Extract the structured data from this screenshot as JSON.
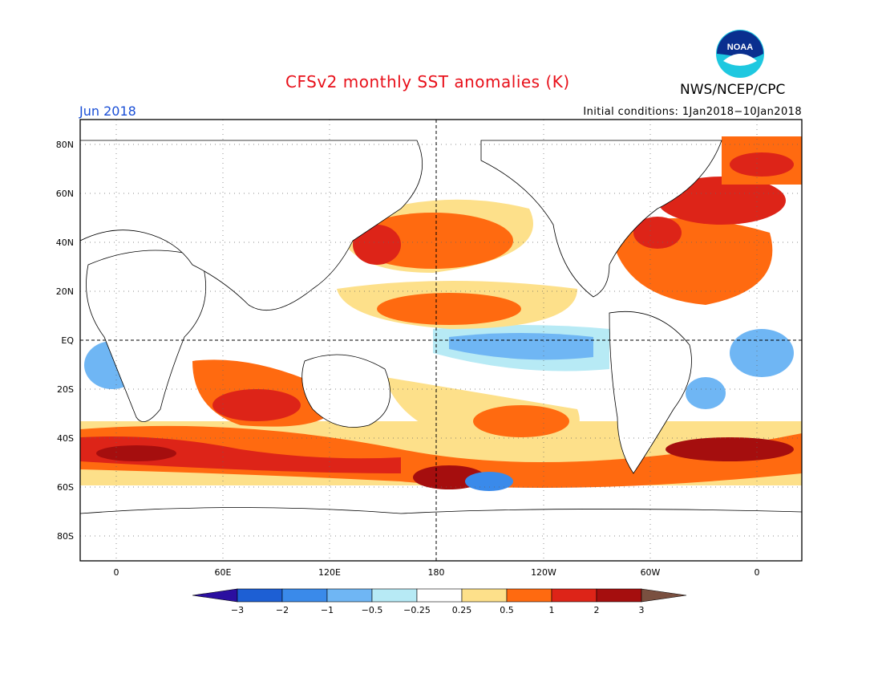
{
  "header": {
    "title": "CFSv2 monthly SST anomalies (K)",
    "month": "Jun 2018",
    "initial_conditions": "Initial conditions: 1Jan2018−10Jan2018",
    "agency": "NWS/NCEP/CPC",
    "logo_text": "NOAA"
  },
  "map": {
    "lat_labels": [
      "80N",
      "60N",
      "40N",
      "20N",
      "EQ",
      "20S",
      "40S",
      "60S",
      "80S"
    ],
    "lon_labels": [
      "0",
      "60E",
      "120E",
      "180",
      "120W",
      "60W",
      "0"
    ],
    "colors": {
      "land": "#ffffff",
      "coastline": "#000000",
      "gridline": "#555555"
    }
  },
  "colorbar": {
    "tick_labels": [
      "−3",
      "−2",
      "−1",
      "−0.5",
      "−0.25",
      "0.25",
      "0.5",
      "1",
      "2",
      "3"
    ],
    "colors": [
      "#2b0fa0",
      "#1d5fd4",
      "#3a8aea",
      "#6fb6f4",
      "#b7eaf5",
      "#ffffff",
      "#fde08a",
      "#ff6a10",
      "#dd2418",
      "#a50e0e",
      "#7a5040"
    ]
  }
}
